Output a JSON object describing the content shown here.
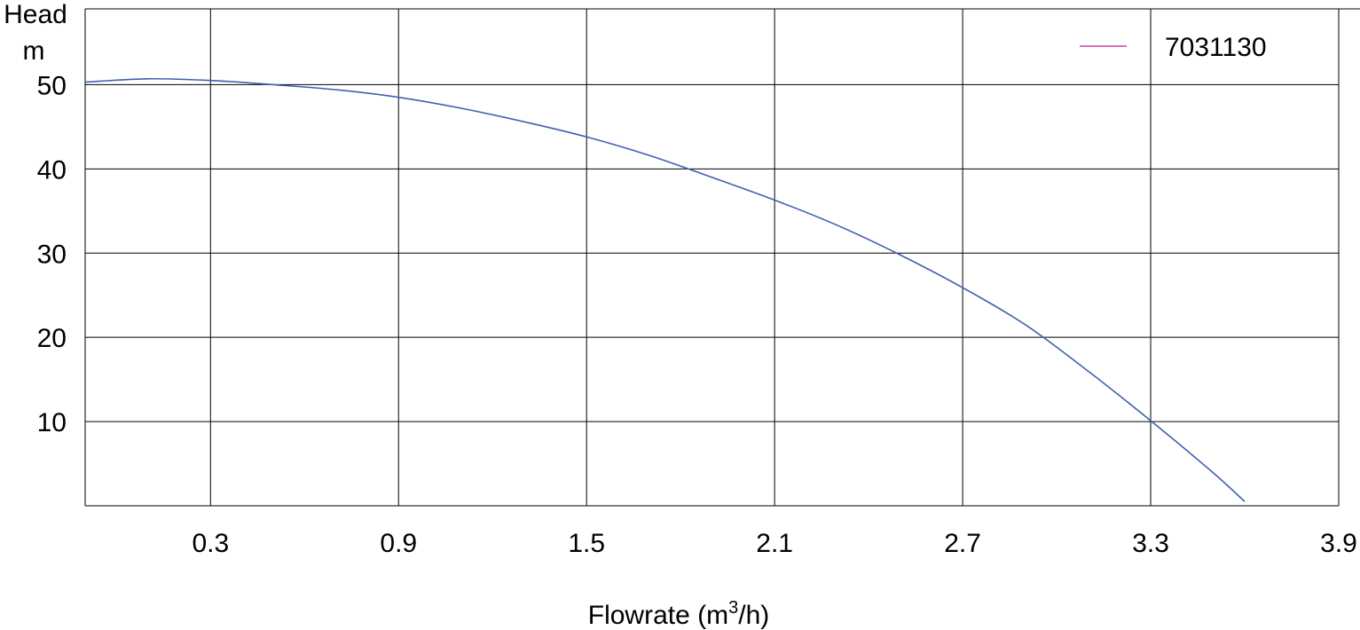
{
  "chart_data": {
    "type": "line",
    "title": "",
    "xlabel": "Flowrate (m³/h)",
    "xlabel_main": "Flowrate (m",
    "xlabel_sup": "3",
    "xlabel_tail": "/h)",
    "ylabel_line1": "Head",
    "ylabel_line2": "m",
    "xlim": [
      -0.1,
      3.9
    ],
    "ylim": [
      0,
      59
    ],
    "x_ticks": [
      0.3,
      0.9,
      1.5,
      2.1,
      2.7,
      3.3,
      3.9
    ],
    "x_tick_labels": [
      "0.3",
      "0.9",
      "1.5",
      "2.1",
      "2.7",
      "3.3",
      "3.9"
    ],
    "y_ticks": [
      10,
      20,
      30,
      40,
      50
    ],
    "y_tick_labels": [
      "10",
      "20",
      "30",
      "40",
      "50"
    ],
    "grid": true,
    "legend_position": "top-right",
    "legend_line_color": "#cc44aa",
    "series": [
      {
        "name": "7031130",
        "color": "#4060b0",
        "x": [
          -0.1,
          0.1,
          0.3,
          0.5,
          0.7,
          0.9,
          1.1,
          1.3,
          1.5,
          1.7,
          1.9,
          2.1,
          2.3,
          2.5,
          2.7,
          2.9,
          3.1,
          3.3,
          3.5,
          3.6
        ],
        "y": [
          50.3,
          50.7,
          50.5,
          50.0,
          49.4,
          48.5,
          47.2,
          45.6,
          43.8,
          41.6,
          39.0,
          36.3,
          33.3,
          29.8,
          25.9,
          21.5,
          16.0,
          10.1,
          3.9,
          0.5
        ]
      }
    ]
  }
}
